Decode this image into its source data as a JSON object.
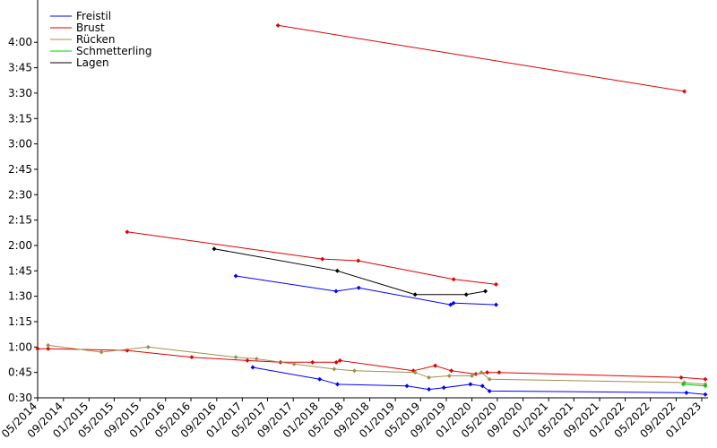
{
  "chart_data": {
    "type": "line",
    "title": "",
    "xlabel": "",
    "ylabel": "",
    "legend_position": "top-left",
    "grid": false,
    "xlim": [
      "2014-05-01",
      "2023-01-31"
    ],
    "ylim_seconds": [
      30,
      265
    ],
    "y_ticks": [
      "0:30",
      "0:45",
      "1:00",
      "1:15",
      "1:30",
      "1:45",
      "2:00",
      "2:15",
      "2:30",
      "2:45",
      "3:00",
      "3:15",
      "3:30",
      "3:45",
      "4:00"
    ],
    "x_ticks": [
      "05/2014",
      "09/2014",
      "01/2015",
      "05/2015",
      "09/2015",
      "01/2016",
      "05/2016",
      "09/2016",
      "01/2017",
      "05/2017",
      "09/2017",
      "01/2018",
      "05/2018",
      "09/2018",
      "01/2019",
      "05/2019",
      "09/2019",
      "01/2020",
      "05/2020",
      "09/2020",
      "01/2021",
      "05/2021",
      "09/2021",
      "01/2022",
      "05/2022",
      "09/2022",
      "01/2023"
    ],
    "series": [
      {
        "name": "Freistil",
        "color": "#0000ff",
        "lines": [
          [
            [
              "2016-12-01",
              "1:42"
            ],
            [
              "2018-03-24",
              "1:33"
            ],
            [
              "2018-07-10",
              "1:35"
            ],
            [
              "2019-09-21",
              "1:25"
            ],
            [
              "2019-10-05",
              "1:26"
            ],
            [
              "2020-04-25",
              "1:25"
            ]
          ],
          [
            [
              "2017-02-20",
              "0:48"
            ],
            [
              "2018-01-05",
              "0:41"
            ],
            [
              "2018-03-31",
              "0:38"
            ],
            [
              "2019-02-25",
              "0:37"
            ],
            [
              "2019-06-10",
              "0:35"
            ],
            [
              "2019-08-20",
              "0:36"
            ],
            [
              "2019-12-25",
              "0:38"
            ],
            [
              "2020-02-20",
              "0:37"
            ],
            [
              "2020-03-25",
              "0:34"
            ],
            [
              "2022-10-20",
              "0:33"
            ],
            [
              "2023-01-18",
              "0:32"
            ]
          ]
        ]
      },
      {
        "name": "Brust",
        "color": "#e00000",
        "lines": [
          [
            [
              "2017-06-20",
              "4:10"
            ],
            [
              "2022-10-10",
              "3:31"
            ]
          ],
          [
            [
              "2015-07-02",
              "2:08"
            ],
            [
              "2018-01-18",
              "1:52"
            ],
            [
              "2018-07-08",
              "1:51"
            ],
            [
              "2019-10-06",
              "1:40"
            ],
            [
              "2020-04-25",
              "1:37"
            ]
          ],
          [
            [
              "2014-05-01",
              "0:59"
            ],
            [
              "2014-06-20",
              "0:59"
            ],
            [
              "2015-07-02",
              "0:58"
            ],
            [
              "2016-05-05",
              "0:54"
            ],
            [
              "2017-01-25",
              "0:52"
            ],
            [
              "2017-07-02",
              "0:51"
            ],
            [
              "2017-12-02",
              "0:51"
            ],
            [
              "2018-03-25",
              "0:51"
            ],
            [
              "2018-04-12",
              "0:52"
            ],
            [
              "2019-03-28",
              "0:46"
            ],
            [
              "2019-07-10",
              "0:49"
            ],
            [
              "2019-09-25",
              "0:46"
            ],
            [
              "2020-01-20",
              "0:44"
            ],
            [
              "2020-03-14",
              "0:45"
            ],
            [
              "2020-05-10",
              "0:45"
            ],
            [
              "2022-09-25",
              "0:42"
            ],
            [
              "2023-01-18",
              "0:41"
            ]
          ]
        ]
      },
      {
        "name": "Rücken",
        "color": "#a09050",
        "lines": [
          [
            [
              "2014-06-20",
              "1:01"
            ],
            [
              "2015-03-01",
              "0:57"
            ],
            [
              "2015-10-10",
              "1:00"
            ],
            [
              "2016-12-01",
              "0:54"
            ],
            [
              "2017-03-10",
              "0:53"
            ],
            [
              "2017-09-05",
              "0:50"
            ],
            [
              "2018-03-15",
              "0:47"
            ],
            [
              "2018-06-20",
              "0:46"
            ],
            [
              "2019-04-05",
              "0:45"
            ],
            [
              "2019-06-10",
              "0:42"
            ],
            [
              "2019-09-15",
              "0:43"
            ],
            [
              "2020-01-01",
              "0:43"
            ],
            [
              "2020-02-15",
              "0:45"
            ],
            [
              "2020-03-25",
              "0:41"
            ],
            [
              "2022-10-10",
              "0:39"
            ],
            [
              "2023-01-18",
              "0:38"
            ]
          ]
        ]
      },
      {
        "name": "Schmetterling",
        "color": "#00d000",
        "lines": [
          [
            [
              "2022-10-05",
              "0:38"
            ],
            [
              "2023-01-18",
              "0:37"
            ]
          ]
        ]
      },
      {
        "name": "Lagen",
        "color": "#000000",
        "lines": [
          [
            [
              "2016-08-20",
              "1:58"
            ],
            [
              "2018-03-30",
              "1:45"
            ],
            [
              "2019-04-05",
              "1:31"
            ],
            [
              "2019-12-05",
              "1:31"
            ],
            [
              "2020-03-05",
              "1:33"
            ]
          ]
        ]
      }
    ]
  }
}
